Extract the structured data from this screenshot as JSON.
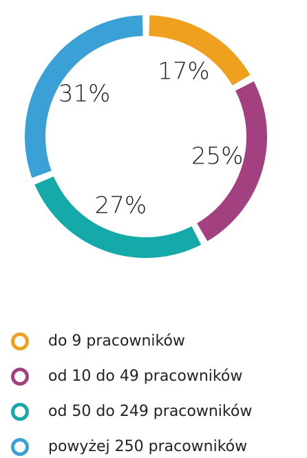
{
  "chart_data": {
    "type": "pie",
    "donut": true,
    "categories": [
      "do 9 pracowników",
      "od 10 do 49 pracowników",
      "od 50 do 249 pracowników",
      "powyżej 250 pracowników"
    ],
    "values": [
      17,
      25,
      27,
      31
    ],
    "value_labels": [
      "17%",
      "25%",
      "27%",
      "31%"
    ],
    "colors": [
      "#f0a01f",
      "#a3407f",
      "#16a9aa",
      "#3aa0d6"
    ]
  }
}
